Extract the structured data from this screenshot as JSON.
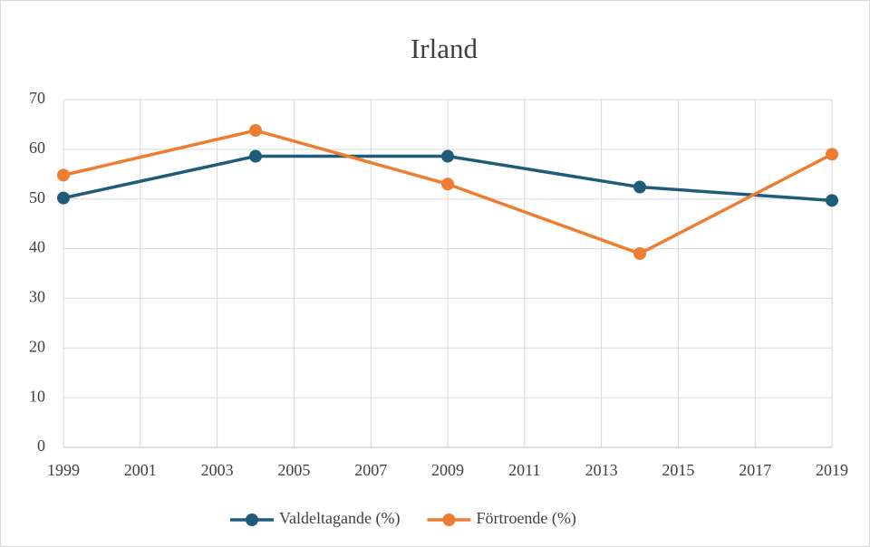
{
  "chart_data": {
    "type": "line",
    "title": "Irland",
    "x": [
      1999,
      2004,
      2009,
      2014,
      2019
    ],
    "series": [
      {
        "name": "Valdeltagande (%)",
        "color": "#1f5c7a",
        "values": [
          50.2,
          58.6,
          58.6,
          52.4,
          49.7
        ]
      },
      {
        "name": "Förtroende (%)",
        "color": "#ed7d31",
        "values": [
          54.8,
          63.8,
          53.0,
          39.0,
          59.0
        ]
      }
    ],
    "xlim": [
      1999,
      2019
    ],
    "xticks": [
      1999,
      2001,
      2003,
      2005,
      2007,
      2009,
      2011,
      2013,
      2015,
      2017,
      2019
    ],
    "ylim": [
      0,
      70
    ],
    "yticks": [
      0,
      10,
      20,
      30,
      40,
      50,
      60,
      70
    ],
    "grid": true,
    "legend": "bottom"
  }
}
